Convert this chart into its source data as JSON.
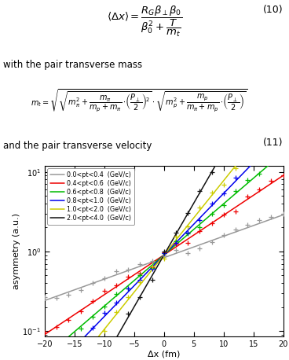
{
  "title": "",
  "xlabel": "Δx (fm)",
  "ylabel": "asymmetry (a.u.)",
  "xlim": [
    -20,
    20
  ],
  "ylim": [
    0.085,
    12
  ],
  "background_color": "#ffffff",
  "plot_bg_color": "#ffffff",
  "series": [
    {
      "label": "0.0<pt<0.4  (GeV/c)",
      "color": "#999999",
      "slope": 0.062,
      "intercept": -0.18,
      "has_markers": false
    },
    {
      "label": "0.4<pt<0.6  (GeV/c)",
      "color": "#ee0000",
      "slope": 0.115,
      "intercept": -0.1,
      "has_markers": true
    },
    {
      "label": "0.6<pt<0.8  (GeV/c)",
      "color": "#00bb00",
      "slope": 0.148,
      "intercept": -0.1,
      "has_markers": false
    },
    {
      "label": "0.8<pt<1.0  (GeV/c)",
      "color": "#0000ee",
      "slope": 0.178,
      "intercept": -0.1,
      "has_markers": true
    },
    {
      "label": "1.0<pt<2.0  (GeV/c)",
      "color": "#cccc00",
      "slope": 0.215,
      "intercept": -0.1,
      "has_markers": false
    },
    {
      "label": "2.0<pt<4.0  (GeV/c)",
      "color": "#111111",
      "slope": 0.3,
      "intercept": -0.1,
      "has_markers": true
    }
  ],
  "marker_x_step": 2.0,
  "marker_x_start": -20,
  "marker_x_end": 20,
  "text1": "with the pair transverse mass",
  "text2": "and the pair transverse velocity"
}
